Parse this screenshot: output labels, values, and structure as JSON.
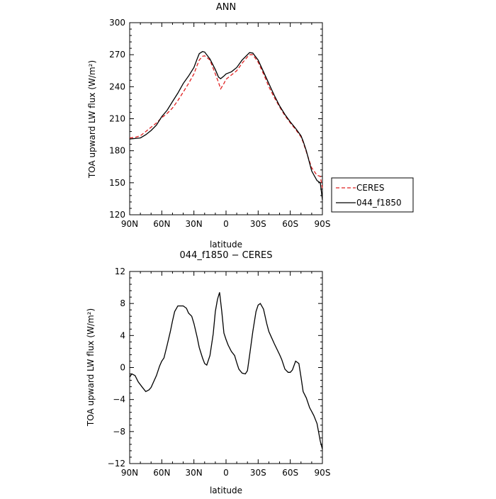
{
  "chart_data": [
    {
      "type": "line",
      "title": "ANN",
      "xlabel": "latitude",
      "ylabel": "TOA upward LW flux (W/m²)",
      "ylim": [
        120,
        300
      ],
      "xlim": [
        90,
        -90
      ],
      "xticks": [
        {
          "v": 90,
          "label": "90N"
        },
        {
          "v": 60,
          "label": "60N"
        },
        {
          "v": 30,
          "label": "30N"
        },
        {
          "v": 0,
          "label": "0"
        },
        {
          "v": -30,
          "label": "30S"
        },
        {
          "v": -60,
          "label": "60S"
        },
        {
          "v": -90,
          "label": "90S"
        }
      ],
      "yticks": [
        120,
        150,
        180,
        210,
        240,
        270,
        300
      ],
      "legend_position": "right-bottom",
      "series": [
        {
          "name": "CERES",
          "color": "#e02020",
          "dash": "dashed",
          "x": [
            90,
            85,
            80,
            75,
            70,
            65,
            60,
            55,
            50,
            45,
            40,
            35,
            30,
            27,
            25,
            22,
            20,
            15,
            10,
            7,
            5,
            2,
            0,
            -5,
            -10,
            -15,
            -20,
            -22,
            -25,
            -30,
            -35,
            -40,
            -45,
            -50,
            -55,
            -60,
            -65,
            -70,
            -72,
            -75,
            -80,
            -85,
            -88,
            -90
          ],
          "y": [
            192,
            192.5,
            194,
            198,
            202,
            206,
            211,
            215,
            220,
            227,
            235,
            243,
            252,
            260,
            265,
            268.5,
            269,
            265,
            252,
            244,
            238,
            243,
            247,
            251,
            255,
            262,
            268,
            270,
            270,
            263,
            252,
            240,
            230,
            221,
            213,
            206,
            200,
            193,
            188,
            179,
            164,
            157,
            156,
            145
          ]
        },
        {
          "name": "044_f1850",
          "color": "#000000",
          "dash": "solid",
          "x": [
            90,
            85,
            80,
            75,
            70,
            65,
            60,
            55,
            50,
            45,
            40,
            35,
            30,
            27,
            25,
            22,
            20,
            15,
            10,
            7,
            5,
            2,
            0,
            -5,
            -10,
            -15,
            -20,
            -22,
            -25,
            -30,
            -35,
            -40,
            -45,
            -50,
            -55,
            -60,
            -65,
            -70,
            -72,
            -75,
            -80,
            -85,
            -88,
            -90
          ],
          "y": [
            191,
            191.5,
            192,
            195,
            199,
            204,
            212,
            218,
            226,
            234,
            243,
            250,
            258,
            266,
            271,
            273,
            272.5,
            266,
            256,
            249,
            247.5,
            250,
            252,
            254,
            258,
            265,
            270,
            272,
            271.5,
            265,
            254,
            243,
            232,
            222,
            214,
            207,
            201,
            194,
            189,
            180,
            161,
            152,
            150,
            134
          ]
        }
      ]
    },
    {
      "type": "line",
      "title": "044_f1850 − CERES",
      "xlabel": "latitude",
      "ylabel": "TOA upward LW flux (W/m²)",
      "ylim": [
        -12,
        12
      ],
      "xlim": [
        90,
        -90
      ],
      "xticks": [
        {
          "v": 90,
          "label": "90N"
        },
        {
          "v": 60,
          "label": "60N"
        },
        {
          "v": 30,
          "label": "30N"
        },
        {
          "v": 0,
          "label": "0"
        },
        {
          "v": -30,
          "label": "30S"
        },
        {
          "v": -60,
          "label": "60S"
        },
        {
          "v": -90,
          "label": "90S"
        }
      ],
      "yticks": [
        -12,
        -8,
        -4,
        0,
        4,
        8,
        12
      ],
      "series": [
        {
          "color": "#000000",
          "dash": "solid",
          "x": [
            90,
            88,
            85,
            82,
            78,
            75,
            72,
            70,
            65,
            62,
            60,
            58,
            55,
            52,
            50,
            48,
            45,
            40,
            37,
            35,
            32,
            30,
            27,
            25,
            22,
            20,
            18,
            15,
            12,
            10,
            8,
            6,
            4,
            2,
            0,
            -2,
            -5,
            -8,
            -10,
            -12,
            -15,
            -18,
            -20,
            -22,
            -25,
            -28,
            -30,
            -32,
            -35,
            -38,
            -40,
            -45,
            -50,
            -52,
            -55,
            -58,
            -60,
            -62,
            -65,
            -68,
            -70,
            -72,
            -75,
            -78,
            -80,
            -82,
            -85,
            -88,
            -90
          ],
          "y": [
            -1.2,
            -0.8,
            -1,
            -1.8,
            -2.5,
            -3,
            -2.8,
            -2.5,
            -1.0,
            0.2,
            0.8,
            1.2,
            2.8,
            4.5,
            5.8,
            7.0,
            7.7,
            7.7,
            7.4,
            6.8,
            6.4,
            5.5,
            3.8,
            2.5,
            1.2,
            0.5,
            0.3,
            1.5,
            4.2,
            7.0,
            8.5,
            9.4,
            7.0,
            4.3,
            3.5,
            2.8,
            2.0,
            1.5,
            0.6,
            -0.2,
            -0.7,
            -0.8,
            -0.4,
            1.5,
            4.5,
            7.0,
            7.8,
            8.0,
            7.3,
            5.5,
            4.5,
            3.0,
            1.6,
            1.0,
            -0.2,
            -0.6,
            -0.6,
            -0.3,
            0.8,
            0.5,
            -1.2,
            -3.0,
            -3.8,
            -5.0,
            -5.5,
            -6.0,
            -7.0,
            -9.2,
            -10.2
          ]
        }
      ]
    }
  ]
}
